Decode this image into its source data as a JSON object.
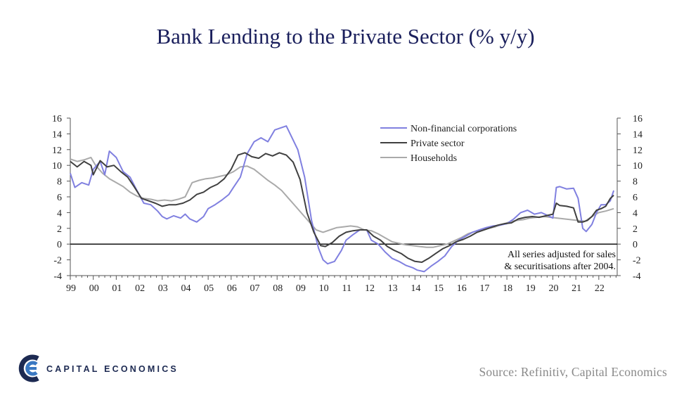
{
  "title": "Bank Lending to the Private Sector (% y/y)",
  "source": "Source: Refinitiv, Capital Economics",
  "logo": {
    "text": "CAPITAL ECONOMICS"
  },
  "colors": {
    "title": "#1a1f5c",
    "nfc": "#8080e0",
    "private": "#404040",
    "households": "#aaaaaa"
  },
  "chart_data": {
    "type": "line",
    "title": "Bank Lending to the Private Sector (% y/y)",
    "x_tick_labels": [
      "99",
      "00",
      "01",
      "02",
      "03",
      "04",
      "05",
      "06",
      "07",
      "08",
      "09",
      "10",
      "11",
      "12",
      "13",
      "14",
      "15",
      "16",
      "17",
      "18",
      "19",
      "20",
      "21",
      "22"
    ],
    "xlim": [
      1999.0,
      2022.8
    ],
    "ylim": [
      -4,
      16
    ],
    "y_ticks": [
      -4,
      -2,
      0,
      2,
      4,
      6,
      8,
      10,
      12,
      14,
      16
    ],
    "y_tick_labels": [
      "-4",
      "-2",
      "0",
      "2",
      "4",
      "6",
      "8",
      "10",
      "12",
      "14",
      "16"
    ],
    "legend_position": "top-center",
    "note": [
      "All series adjusted for sales",
      "& securitisations after 2004."
    ],
    "grid": false,
    "series": [
      {
        "name": "Non-financial corporations",
        "color": "#8080e0",
        "x": [
          1999.0,
          1999.2,
          1999.5,
          1999.8,
          2000.0,
          2000.3,
          2000.5,
          2000.7,
          2001.0,
          2001.3,
          2001.6,
          2001.9,
          2002.2,
          2002.5,
          2002.8,
          2003.0,
          2003.2,
          2003.5,
          2003.8,
          2004.0,
          2004.2,
          2004.5,
          2004.8,
          2005.0,
          2005.3,
          2005.6,
          2005.9,
          2006.1,
          2006.4,
          2006.7,
          2007.0,
          2007.3,
          2007.6,
          2007.9,
          2008.2,
          2008.4,
          2008.6,
          2008.9,
          2009.2,
          2009.5,
          2009.8,
          2010.0,
          2010.2,
          2010.5,
          2010.8,
          2011.0,
          2011.3,
          2011.6,
          2011.9,
          2012.1,
          2012.4,
          2012.7,
          2013.0,
          2013.3,
          2013.6,
          2013.9,
          2014.1,
          2014.4,
          2014.7,
          2015.0,
          2015.3,
          2015.6,
          2015.9,
          2016.2,
          2016.5,
          2016.8,
          2017.1,
          2017.4,
          2017.7,
          2018.0,
          2018.3,
          2018.6,
          2018.9,
          2019.2,
          2019.5,
          2019.8,
          2020.0,
          2020.15,
          2020.3,
          2020.6,
          2020.9,
          2021.1,
          2021.3,
          2021.45,
          2021.7,
          2021.9,
          2022.1,
          2022.3,
          2022.5,
          2022.65
        ],
        "values": [
          9.0,
          7.2,
          7.8,
          7.5,
          9.5,
          10.5,
          8.8,
          11.8,
          11.0,
          9.2,
          8.5,
          6.8,
          5.2,
          5.0,
          4.2,
          3.5,
          3.2,
          3.6,
          3.3,
          3.8,
          3.2,
          2.8,
          3.5,
          4.5,
          5.0,
          5.6,
          6.3,
          7.2,
          8.5,
          11.5,
          13.0,
          13.5,
          13.0,
          14.5,
          14.8,
          15.0,
          13.8,
          12.0,
          8.5,
          3.0,
          -0.5,
          -2.0,
          -2.5,
          -2.2,
          -0.8,
          0.5,
          1.2,
          1.8,
          1.8,
          0.5,
          0.0,
          -1.0,
          -1.8,
          -2.2,
          -2.7,
          -3.0,
          -3.3,
          -3.5,
          -2.8,
          -2.2,
          -1.5,
          -0.3,
          0.5,
          1.0,
          1.5,
          1.8,
          2.1,
          2.3,
          2.4,
          2.6,
          3.2,
          4.0,
          4.3,
          3.8,
          4.0,
          3.6,
          3.3,
          7.2,
          7.3,
          7.0,
          7.1,
          5.8,
          2.0,
          1.6,
          2.5,
          4.0,
          5.0,
          5.0,
          5.5,
          6.8
        ]
      },
      {
        "name": "Private sector",
        "color": "#404040",
        "x": [
          1999.0,
          1999.3,
          1999.6,
          1999.9,
          2000.0,
          2000.3,
          2000.6,
          2000.9,
          2001.2,
          2001.5,
          2001.8,
          2002.1,
          2002.4,
          2002.7,
          2003.0,
          2003.3,
          2003.6,
          2003.9,
          2004.2,
          2004.5,
          2004.8,
          2005.1,
          2005.4,
          2005.7,
          2006.0,
          2006.3,
          2006.6,
          2006.9,
          2007.2,
          2007.5,
          2007.8,
          2008.1,
          2008.4,
          2008.7,
          2009.0,
          2009.3,
          2009.6,
          2009.9,
          2010.1,
          2010.4,
          2010.7,
          2011.0,
          2011.3,
          2011.6,
          2011.9,
          2012.2,
          2012.5,
          2012.8,
          2013.1,
          2013.4,
          2013.7,
          2014.0,
          2014.3,
          2014.6,
          2014.9,
          2015.2,
          2015.5,
          2015.8,
          2016.1,
          2016.4,
          2016.7,
          2017.0,
          2017.3,
          2017.6,
          2017.9,
          2018.2,
          2018.5,
          2018.8,
          2019.1,
          2019.4,
          2019.7,
          2020.0,
          2020.15,
          2020.3,
          2020.6,
          2020.9,
          2021.1,
          2021.3,
          2021.5,
          2021.7,
          2021.9,
          2022.1,
          2022.3,
          2022.5,
          2022.65
        ],
        "values": [
          10.5,
          9.8,
          10.5,
          10.0,
          8.8,
          10.6,
          9.8,
          10.0,
          9.2,
          8.5,
          7.2,
          5.8,
          5.5,
          5.2,
          4.8,
          5.0,
          5.0,
          5.2,
          5.6,
          6.3,
          6.6,
          7.2,
          7.6,
          8.3,
          9.5,
          11.3,
          11.6,
          11.1,
          10.9,
          11.5,
          11.2,
          11.6,
          11.3,
          10.4,
          8.2,
          4.0,
          1.5,
          -0.2,
          -0.3,
          0.2,
          1.0,
          1.5,
          1.7,
          1.8,
          1.8,
          1.0,
          0.5,
          -0.3,
          -0.8,
          -1.2,
          -1.8,
          -2.2,
          -2.3,
          -1.8,
          -1.2,
          -0.6,
          -0.2,
          0.3,
          0.6,
          1.0,
          1.5,
          1.8,
          2.1,
          2.4,
          2.6,
          2.7,
          3.2,
          3.4,
          3.5,
          3.4,
          3.6,
          3.8,
          5.2,
          4.9,
          4.8,
          4.6,
          2.8,
          2.8,
          3.0,
          3.5,
          4.3,
          4.5,
          4.8,
          5.8,
          6.2
        ]
      },
      {
        "name": "Households",
        "color": "#aaaaaa",
        "x": [
          1999.0,
          1999.3,
          1999.6,
          1999.9,
          2000.1,
          2000.4,
          2000.7,
          2001.0,
          2001.3,
          2001.6,
          2001.9,
          2002.2,
          2002.5,
          2002.8,
          2003.1,
          2003.4,
          2003.7,
          2004.0,
          2004.3,
          2004.6,
          2004.9,
          2005.2,
          2005.5,
          2005.8,
          2006.1,
          2006.4,
          2006.7,
          2007.0,
          2007.3,
          2007.6,
          2007.9,
          2008.2,
          2008.5,
          2008.8,
          2009.1,
          2009.4,
          2009.7,
          2010.0,
          2010.3,
          2010.6,
          2010.9,
          2011.2,
          2011.5,
          2011.8,
          2012.1,
          2012.4,
          2012.7,
          2013.0,
          2013.3,
          2013.6,
          2013.9,
          2014.2,
          2014.5,
          2014.8,
          2015.1,
          2015.4,
          2015.7,
          2016.0,
          2016.3,
          2016.6,
          2016.9,
          2017.2,
          2017.5,
          2017.8,
          2018.1,
          2018.4,
          2018.7,
          2019.0,
          2019.3,
          2019.6,
          2019.9,
          2020.2,
          2020.5,
          2020.8,
          2021.1,
          2021.4,
          2021.7,
          2022.0,
          2022.3,
          2022.65
        ],
        "values": [
          10.8,
          10.5,
          10.7,
          11.0,
          10.0,
          9.0,
          8.3,
          7.8,
          7.3,
          6.6,
          6.1,
          5.8,
          5.7,
          5.5,
          5.6,
          5.5,
          5.7,
          6.0,
          7.8,
          8.1,
          8.3,
          8.4,
          8.6,
          8.8,
          9.2,
          9.8,
          9.9,
          9.5,
          8.8,
          8.1,
          7.5,
          6.8,
          5.8,
          4.8,
          3.8,
          2.8,
          1.8,
          1.5,
          1.8,
          2.1,
          2.2,
          2.3,
          2.2,
          1.8,
          1.7,
          1.3,
          0.8,
          0.3,
          0.1,
          -0.1,
          -0.2,
          -0.3,
          -0.4,
          -0.4,
          -0.2,
          0.0,
          0.4,
          0.8,
          1.3,
          1.6,
          1.8,
          2.0,
          2.2,
          2.5,
          2.8,
          3.0,
          3.1,
          3.3,
          3.4,
          3.5,
          3.4,
          3.3,
          3.2,
          3.1,
          3.0,
          2.9,
          3.5,
          4.0,
          4.2,
          4.5
        ]
      }
    ]
  }
}
